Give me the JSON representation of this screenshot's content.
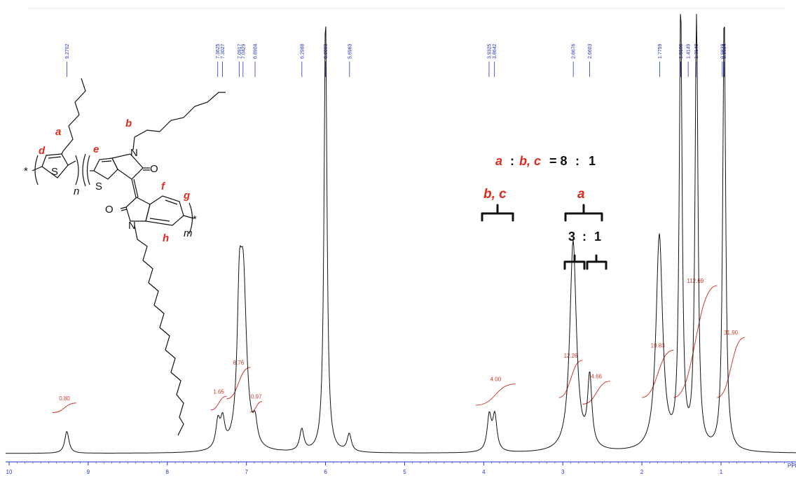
{
  "chart_data": {
    "type": "line",
    "title": "",
    "xlabel": "",
    "ylabel": "",
    "x_unit_label": "PPM",
    "x_axis_reversed": true,
    "xlim": [
      10.0,
      0.0
    ],
    "x_ticks": [
      "10",
      "9",
      "8",
      "7",
      "6",
      "5",
      "4",
      "3",
      "2",
      "1"
    ],
    "peak_labels": [
      "9.2702",
      "7.3625",
      "7.3027",
      "7.0917",
      "7.0429",
      "6.8904",
      "6.2988",
      "6.0003",
      "5.6963",
      "3.9325",
      "3.8642",
      "2.8676",
      "2.6603",
      "1.7759",
      "1.5106",
      "1.4149",
      "1.3148",
      "0.9838",
      "0.9584"
    ],
    "peaks": [
      {
        "ppm": 9.27,
        "height": 0.05
      },
      {
        "ppm": 7.36,
        "height": 0.06
      },
      {
        "ppm": 7.3,
        "height": 0.06
      },
      {
        "ppm": 7.09,
        "height": 0.26
      },
      {
        "ppm": 7.04,
        "height": 0.38
      },
      {
        "ppm": 6.89,
        "height": 0.05
      },
      {
        "ppm": 6.3,
        "height": 0.05
      },
      {
        "ppm": 6.0,
        "height": 1.0
      },
      {
        "ppm": 5.7,
        "height": 0.04
      },
      {
        "ppm": 3.93,
        "height": 0.08
      },
      {
        "ppm": 3.86,
        "height": 0.08
      },
      {
        "ppm": 2.87,
        "height": 0.48
      },
      {
        "ppm": 2.66,
        "height": 0.16
      },
      {
        "ppm": 1.78,
        "height": 0.49
      },
      {
        "ppm": 1.51,
        "height": 1.0
      },
      {
        "ppm": 1.31,
        "height": 1.0
      },
      {
        "ppm": 0.96,
        "height": 1.0
      }
    ],
    "integrals": [
      {
        "value": "0.80",
        "range": [
          9.45,
          9.15
        ]
      },
      {
        "value": "1.65",
        "range": [
          7.45,
          7.25
        ]
      },
      {
        "value": "8.76",
        "range": [
          7.25,
          6.95
        ]
      },
      {
        "value": "0.97",
        "range": [
          6.95,
          6.8
        ]
      },
      {
        "value": "4.00",
        "range": [
          4.1,
          3.6
        ]
      },
      {
        "value": "12.26",
        "range": [
          3.05,
          2.75
        ]
      },
      {
        "value": "4.66",
        "range": [
          2.75,
          2.4
        ]
      },
      {
        "value": "19.83",
        "range": [
          2.0,
          1.6
        ]
      },
      {
        "value": "112.69",
        "range": [
          1.6,
          1.05
        ]
      },
      {
        "value": "31.90",
        "range": [
          1.05,
          0.7
        ]
      }
    ]
  },
  "annotations": {
    "ratio_a": "a",
    "ratio_colon1": ":",
    "ratio_bc": "b, c",
    "ratio_eq": "= 8",
    "ratio_colon2": ":",
    "ratio_one": "1",
    "group_bc": "b, c",
    "group_a": "a",
    "sub_ratio_three": "3",
    "sub_ratio_colon": ":",
    "sub_ratio_one": "1"
  },
  "structure": {
    "label_a": "a",
    "label_b": "b",
    "label_d": "d",
    "label_e": "e",
    "label_f": "f",
    "label_g": "g",
    "label_h": "h",
    "atom_S1": "S",
    "atom_S2": "S",
    "atom_N1": "N",
    "atom_N2": "N",
    "atom_O1": "O",
    "atom_O2": "O",
    "star_left": "*",
    "star_right": "*",
    "sub_n": "n",
    "sub_m": "m"
  },
  "colors": {
    "spectrum": "#111111",
    "axis": "#2233cc",
    "integral": "#d23a2a",
    "label_red": "#e02b1d"
  }
}
